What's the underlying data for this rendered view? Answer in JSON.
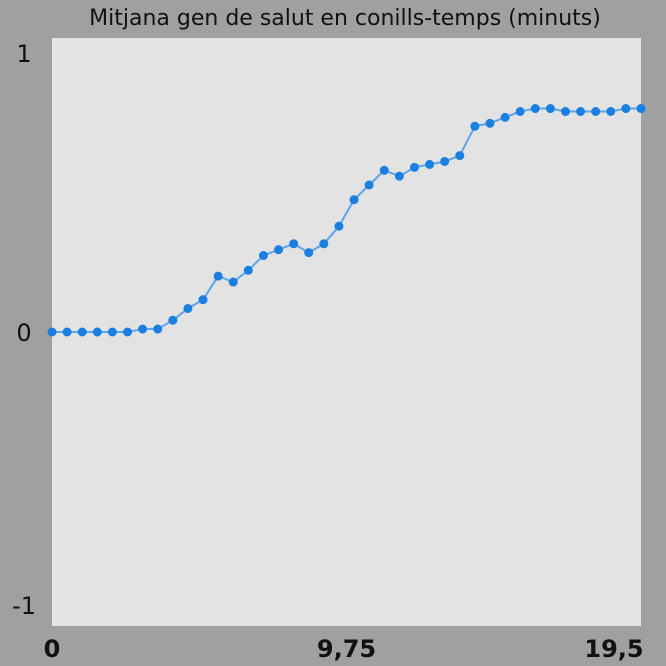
{
  "chart_data": {
    "type": "line",
    "title": "Mitjana gen de salut en conills-temps (minuts)",
    "xlabel": "",
    "ylabel": "",
    "xlim": [
      0,
      19.5
    ],
    "ylim": [
      -1,
      1
    ],
    "x_ticks": [
      {
        "value": 0,
        "label": "0"
      },
      {
        "value": 9.75,
        "label": "9,75"
      },
      {
        "value": 19.5,
        "label": "19,5"
      }
    ],
    "y_ticks": [
      {
        "value": 1,
        "label": "1"
      },
      {
        "value": 0,
        "label": "0"
      },
      {
        "value": -1,
        "label": "-1"
      }
    ],
    "grid": false,
    "legend": "none",
    "colors": {
      "line": "#5aa5ee",
      "marker": "#1a7fe0",
      "plot_background": "#e3e3e3",
      "page_background": "#a0a0a0"
    },
    "series": [
      {
        "x": [
          0,
          0.5,
          1,
          1.5,
          2,
          2.5,
          3,
          3.5,
          4,
          4.5,
          5,
          5.5,
          6,
          6.5,
          7,
          7.5,
          8,
          8.5,
          9,
          9.5,
          10,
          10.5,
          11,
          11.5,
          12,
          12.5,
          13,
          13.5,
          14,
          14.5,
          15,
          15.5,
          16,
          16.5,
          17,
          17.5,
          18,
          18.5,
          19,
          19.5
        ],
        "y": [
          0.0,
          0.0,
          0.0,
          0.0,
          0.0,
          0.0,
          0.01,
          0.01,
          0.04,
          0.08,
          0.11,
          0.19,
          0.17,
          0.21,
          0.26,
          0.28,
          0.3,
          0.27,
          0.3,
          0.36,
          0.45,
          0.5,
          0.55,
          0.53,
          0.56,
          0.57,
          0.58,
          0.6,
          0.7,
          0.71,
          0.73,
          0.75,
          0.76,
          0.76,
          0.75,
          0.75,
          0.75,
          0.75,
          0.76,
          0.76
        ]
      }
    ]
  }
}
